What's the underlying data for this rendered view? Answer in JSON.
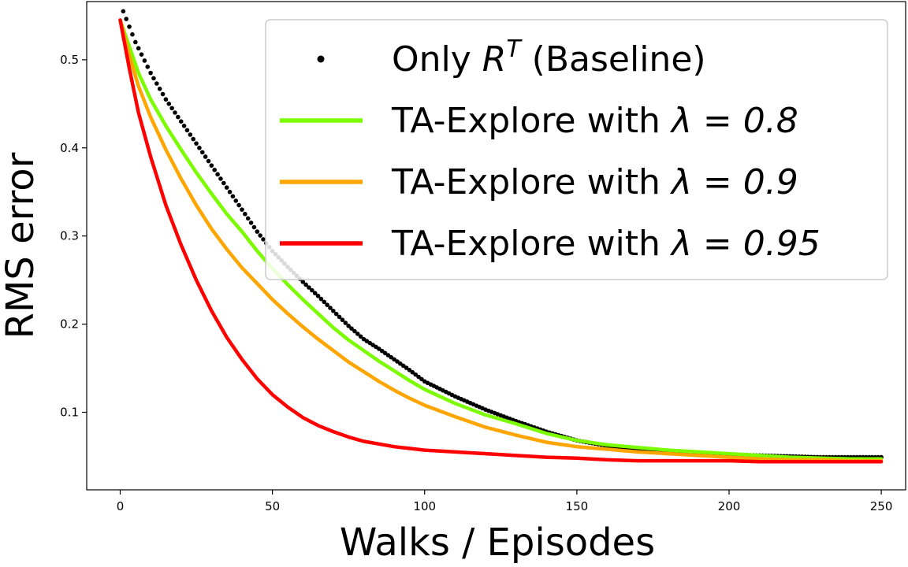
{
  "chart_data": {
    "type": "line",
    "title": "",
    "xlabel": "Walks / Episodes",
    "ylabel": "RMS error",
    "xlim": [
      -11,
      258
    ],
    "ylim": [
      0.012,
      0.566
    ],
    "xticks": [
      0,
      50,
      100,
      150,
      200,
      250
    ],
    "yticks": [
      0.1,
      0.2,
      0.3,
      0.4,
      0.5
    ],
    "grid": false,
    "legend_position": "top-right",
    "series": [
      {
        "name": "Only R^T (Baseline)",
        "legend_prefix": "Only ",
        "legend_math_base": "R",
        "legend_math_sup": "T",
        "legend_suffix": " (Baseline)",
        "style": "dots",
        "color": "#000000",
        "points": [
          [
            1,
            0.555
          ],
          [
            5,
            0.52
          ],
          [
            10,
            0.485
          ],
          [
            15,
            0.455
          ],
          [
            20,
            0.43
          ],
          [
            25,
            0.405
          ],
          [
            30,
            0.38
          ],
          [
            35,
            0.355
          ],
          [
            40,
            0.33
          ],
          [
            45,
            0.305
          ],
          [
            50,
            0.283
          ],
          [
            55,
            0.265
          ],
          [
            60,
            0.248
          ],
          [
            65,
            0.232
          ],
          [
            70,
            0.215
          ],
          [
            75,
            0.198
          ],
          [
            80,
            0.183
          ],
          [
            85,
            0.172
          ],
          [
            90,
            0.16
          ],
          [
            95,
            0.148
          ],
          [
            100,
            0.135
          ],
          [
            110,
            0.118
          ],
          [
            120,
            0.103
          ],
          [
            130,
            0.09
          ],
          [
            140,
            0.078
          ],
          [
            150,
            0.068
          ],
          [
            160,
            0.062
          ],
          [
            170,
            0.058
          ],
          [
            180,
            0.056
          ],
          [
            190,
            0.054
          ],
          [
            200,
            0.052
          ],
          [
            210,
            0.051
          ],
          [
            220,
            0.05
          ],
          [
            230,
            0.049
          ],
          [
            240,
            0.049
          ],
          [
            250,
            0.049
          ]
        ]
      },
      {
        "name": "TA-Explore with λ = 0.8",
        "legend_prefix": "TA-Explore with ",
        "legend_math": "λ = 0.8",
        "style": "line",
        "color": "#7cfc00",
        "points": [
          [
            0,
            0.545
          ],
          [
            3,
            0.515
          ],
          [
            6,
            0.485
          ],
          [
            10,
            0.455
          ],
          [
            15,
            0.425
          ],
          [
            20,
            0.398
          ],
          [
            25,
            0.372
          ],
          [
            30,
            0.348
          ],
          [
            35,
            0.325
          ],
          [
            40,
            0.305
          ],
          [
            45,
            0.283
          ],
          [
            50,
            0.263
          ],
          [
            55,
            0.245
          ],
          [
            60,
            0.228
          ],
          [
            65,
            0.212
          ],
          [
            70,
            0.196
          ],
          [
            75,
            0.182
          ],
          [
            80,
            0.17
          ],
          [
            85,
            0.158
          ],
          [
            90,
            0.147
          ],
          [
            95,
            0.136
          ],
          [
            100,
            0.126
          ],
          [
            110,
            0.11
          ],
          [
            120,
            0.097
          ],
          [
            130,
            0.087
          ],
          [
            140,
            0.076
          ],
          [
            150,
            0.068
          ],
          [
            160,
            0.063
          ],
          [
            170,
            0.06
          ],
          [
            180,
            0.057
          ],
          [
            190,
            0.055
          ],
          [
            200,
            0.053
          ],
          [
            210,
            0.051
          ],
          [
            220,
            0.049
          ],
          [
            230,
            0.048
          ],
          [
            240,
            0.047
          ],
          [
            250,
            0.047
          ]
        ]
      },
      {
        "name": "TA-Explore with λ = 0.9",
        "legend_prefix": "TA-Explore with ",
        "legend_math": "λ = 0.9",
        "style": "line",
        "color": "#ffa500",
        "points": [
          [
            0,
            0.545
          ],
          [
            3,
            0.505
          ],
          [
            6,
            0.47
          ],
          [
            10,
            0.435
          ],
          [
            15,
            0.398
          ],
          [
            20,
            0.365
          ],
          [
            25,
            0.335
          ],
          [
            30,
            0.308
          ],
          [
            35,
            0.285
          ],
          [
            40,
            0.264
          ],
          [
            45,
            0.246
          ],
          [
            50,
            0.228
          ],
          [
            55,
            0.212
          ],
          [
            60,
            0.197
          ],
          [
            65,
            0.183
          ],
          [
            70,
            0.17
          ],
          [
            75,
            0.157
          ],
          [
            80,
            0.146
          ],
          [
            85,
            0.135
          ],
          [
            90,
            0.125
          ],
          [
            95,
            0.116
          ],
          [
            100,
            0.108
          ],
          [
            110,
            0.095
          ],
          [
            120,
            0.083
          ],
          [
            130,
            0.074
          ],
          [
            140,
            0.066
          ],
          [
            150,
            0.061
          ],
          [
            160,
            0.058
          ],
          [
            170,
            0.055
          ],
          [
            180,
            0.053
          ],
          [
            190,
            0.051
          ],
          [
            200,
            0.049
          ],
          [
            210,
            0.047
          ],
          [
            220,
            0.046
          ],
          [
            230,
            0.046
          ],
          [
            240,
            0.045
          ],
          [
            250,
            0.045
          ]
        ]
      },
      {
        "name": "TA-Explore with λ = 0.95",
        "legend_prefix": "TA-Explore with ",
        "legend_math": "λ = 0.95",
        "style": "line",
        "color": "#ff0000",
        "points": [
          [
            0,
            0.545
          ],
          [
            3,
            0.49
          ],
          [
            6,
            0.44
          ],
          [
            10,
            0.39
          ],
          [
            15,
            0.335
          ],
          [
            20,
            0.29
          ],
          [
            25,
            0.25
          ],
          [
            30,
            0.215
          ],
          [
            35,
            0.185
          ],
          [
            40,
            0.16
          ],
          [
            45,
            0.138
          ],
          [
            50,
            0.12
          ],
          [
            55,
            0.106
          ],
          [
            60,
            0.094
          ],
          [
            65,
            0.085
          ],
          [
            70,
            0.078
          ],
          [
            75,
            0.072
          ],
          [
            80,
            0.067
          ],
          [
            85,
            0.064
          ],
          [
            90,
            0.061
          ],
          [
            95,
            0.059
          ],
          [
            100,
            0.057
          ],
          [
            110,
            0.055
          ],
          [
            120,
            0.053
          ],
          [
            130,
            0.051
          ],
          [
            140,
            0.049
          ],
          [
            150,
            0.048
          ],
          [
            160,
            0.046
          ],
          [
            170,
            0.045
          ],
          [
            180,
            0.045
          ],
          [
            190,
            0.045
          ],
          [
            200,
            0.045
          ],
          [
            210,
            0.044
          ],
          [
            220,
            0.044
          ],
          [
            230,
            0.044
          ],
          [
            240,
            0.044
          ],
          [
            250,
            0.044
          ]
        ]
      }
    ]
  }
}
